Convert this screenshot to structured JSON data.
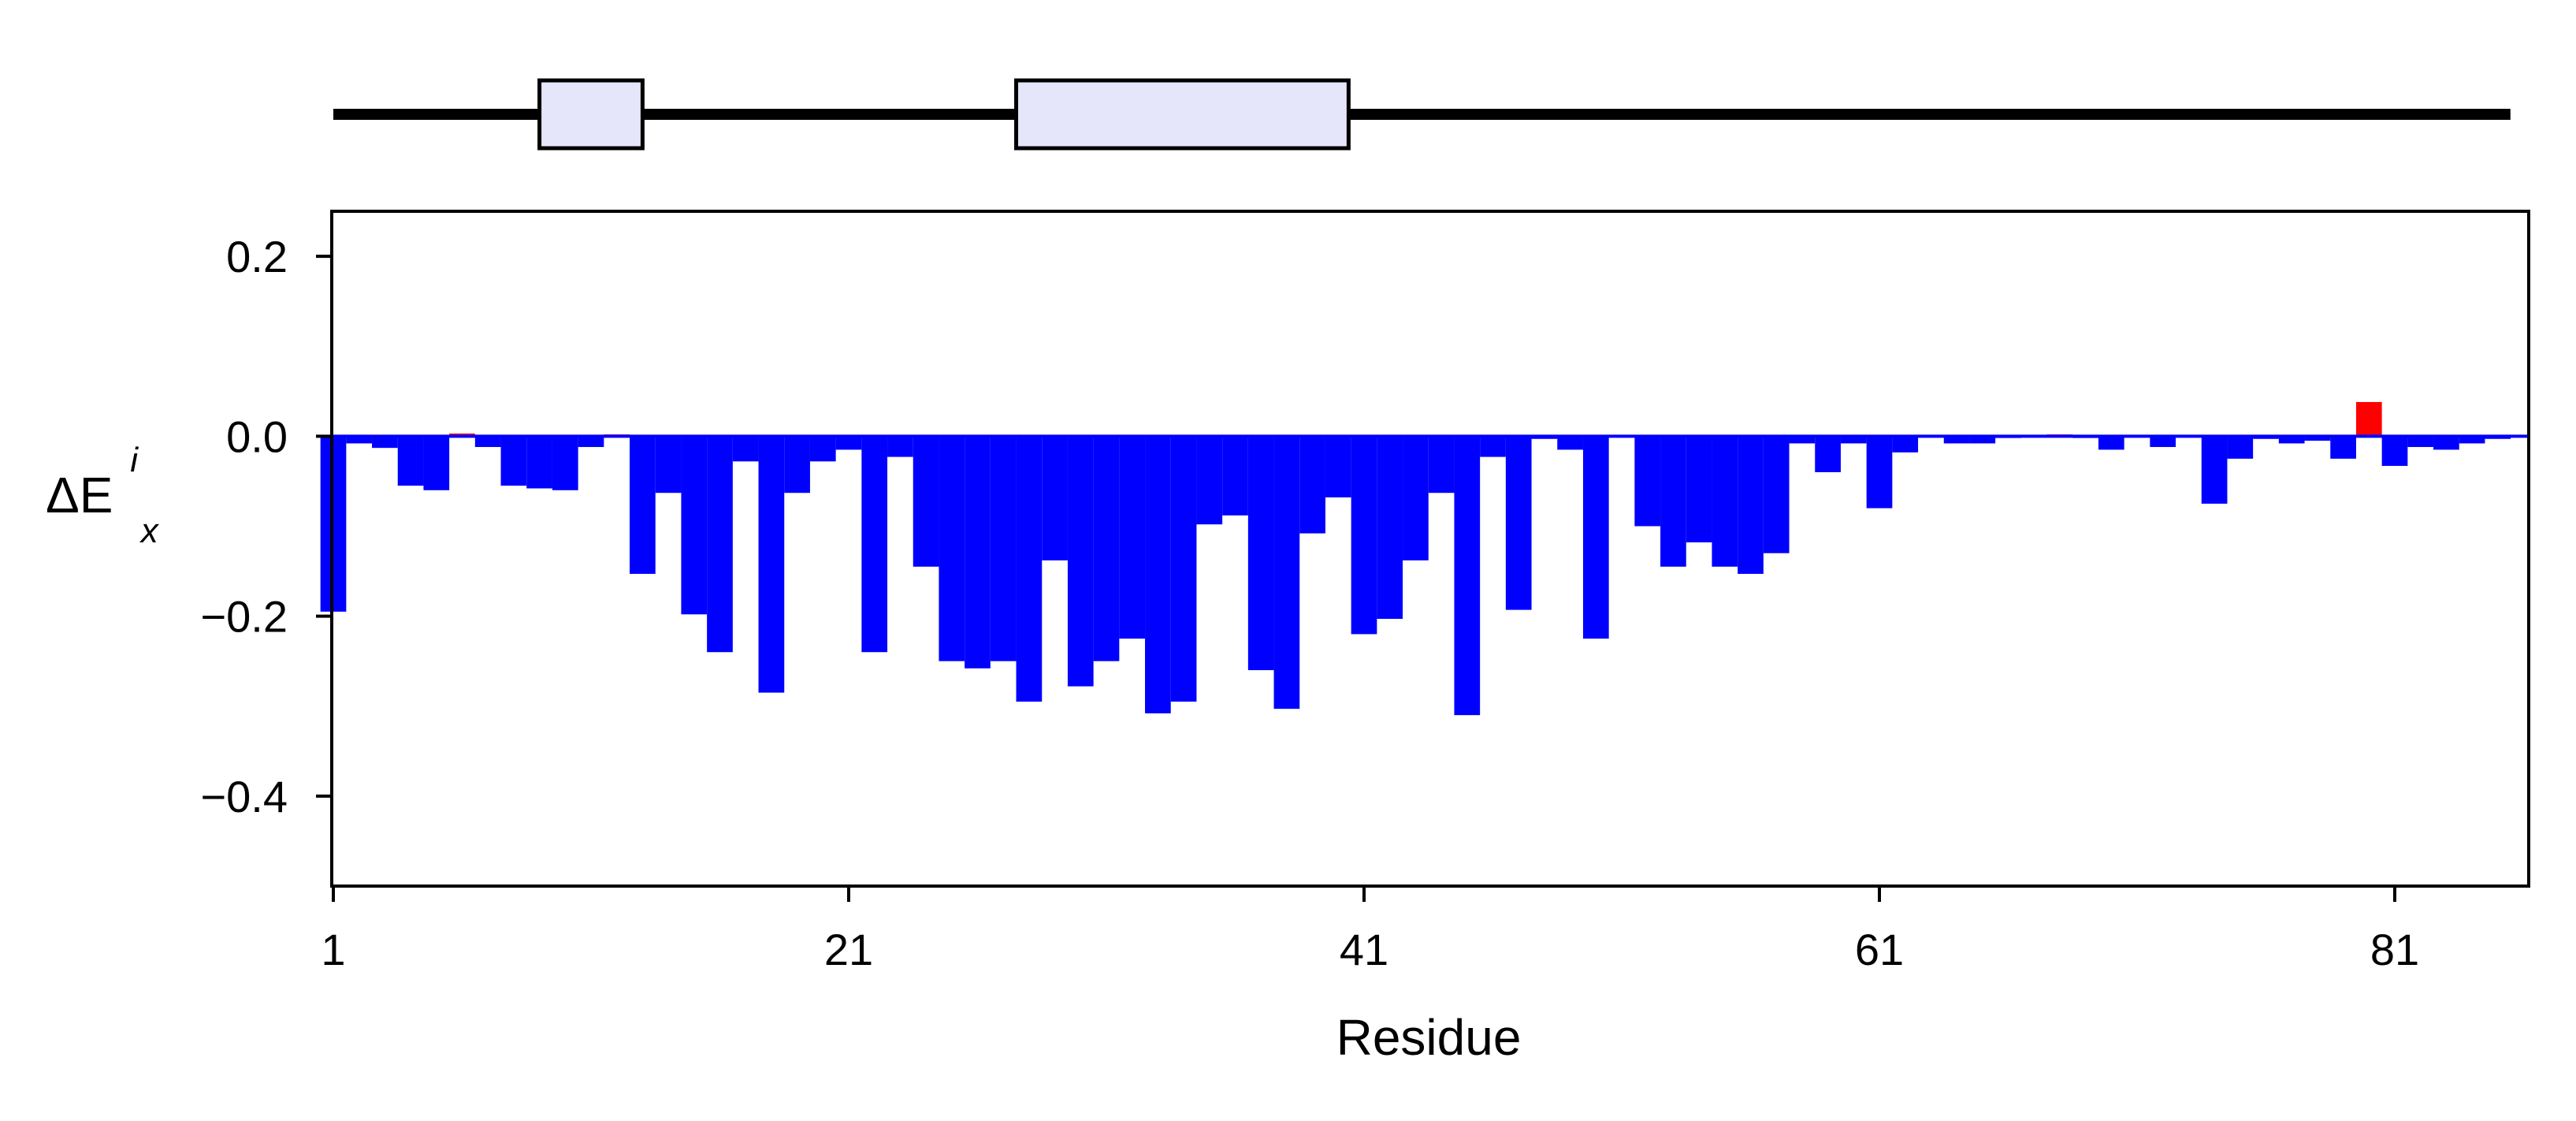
{
  "chart_data": {
    "type": "bar",
    "xlabel": "Residue",
    "ylabel": {
      "main": "ΔE",
      "sub": "x",
      "sup": "i"
    },
    "xlim": [
      1,
      86
    ],
    "ylim": [
      -0.5,
      0.25
    ],
    "xticks": [
      1,
      21,
      41,
      61,
      81
    ],
    "xtick_labels": [
      "1",
      "21",
      "41",
      "61",
      "81"
    ],
    "yticks": [
      0.2,
      0.0,
      -0.2,
      -0.4
    ],
    "ytick_labels": [
      "0.2",
      "0.0",
      "−0.2",
      "−0.4"
    ],
    "grid": false,
    "legend": "none",
    "colors": {
      "negative": "#0000ff",
      "positive": "#ff0000",
      "axis": "#000000",
      "helix_fill": "#e6e6fa"
    },
    "residues": [
      1,
      2,
      3,
      4,
      5,
      6,
      7,
      8,
      9,
      10,
      11,
      12,
      13,
      14,
      15,
      16,
      17,
      18,
      19,
      20,
      21,
      22,
      23,
      24,
      25,
      26,
      27,
      28,
      29,
      30,
      31,
      32,
      33,
      34,
      35,
      36,
      37,
      38,
      39,
      40,
      41,
      42,
      43,
      44,
      45,
      46,
      47,
      48,
      49,
      50,
      51,
      52,
      53,
      54,
      55,
      56,
      57,
      58,
      59,
      60,
      61,
      62,
      63,
      64,
      65,
      66,
      67,
      68,
      69,
      70,
      71,
      72,
      73,
      74,
      75,
      76,
      77,
      78,
      79,
      80,
      81,
      82,
      83,
      84,
      85
    ],
    "values": [
      -0.195,
      -0.008,
      -0.013,
      -0.055,
      -0.06,
      0.003,
      -0.012,
      -0.055,
      -0.058,
      -0.06,
      -0.012,
      0.002,
      -0.153,
      -0.063,
      -0.198,
      -0.24,
      -0.028,
      -0.285,
      -0.063,
      -0.028,
      -0.015,
      -0.24,
      -0.023,
      -0.145,
      -0.25,
      -0.258,
      -0.25,
      -0.295,
      -0.138,
      -0.278,
      -0.25,
      -0.225,
      -0.308,
      -0.295,
      -0.098,
      -0.088,
      -0.26,
      -0.303,
      -0.108,
      -0.068,
      -0.22,
      -0.203,
      -0.138,
      -0.063,
      -0.31,
      -0.023,
      -0.193,
      -0.003,
      -0.015,
      -0.225,
      0.001,
      -0.1,
      -0.145,
      -0.118,
      -0.145,
      -0.153,
      -0.13,
      -0.008,
      -0.04,
      -0.008,
      -0.08,
      -0.018,
      0,
      -0.008,
      -0.008,
      -0.002,
      0,
      0.002,
      -0.002,
      -0.015,
      0,
      -0.012,
      0,
      -0.075,
      -0.025,
      -0.003,
      -0.008,
      -0.005,
      -0.025,
      0.038,
      -0.033,
      -0.012,
      -0.015,
      -0.008,
      -0.003
    ],
    "secondary_structure": [
      {
        "type": "helix",
        "start": 9,
        "end": 13
      },
      {
        "type": "helix",
        "start": 27.5,
        "end": 40.4
      }
    ]
  }
}
